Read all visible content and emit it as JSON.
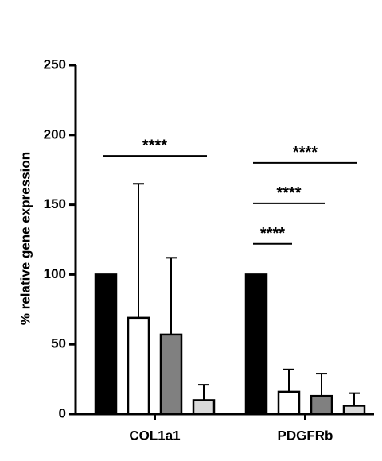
{
  "chart_data": {
    "type": "bar",
    "y_label": "% relative gene expression",
    "categories": [
      "COL1a1",
      "PDGFRb"
    ],
    "series": [
      {
        "color": "#000000",
        "values": [
          100,
          100
        ]
      },
      {
        "color": "#ffffff",
        "values": [
          69,
          16
        ],
        "errors": [
          96,
          16
        ]
      },
      {
        "color": "#808080",
        "values": [
          57,
          13
        ],
        "errors": [
          55,
          16
        ]
      },
      {
        "color": "#d9d9d9",
        "values": [
          10,
          6
        ],
        "errors": [
          11,
          9
        ]
      }
    ],
    "ylim": [
      0,
      250
    ],
    "yticks": [
      0,
      50,
      100,
      150,
      200,
      250
    ],
    "annotations": [
      {
        "text": "****",
        "y": 185,
        "category": 0,
        "from": 0,
        "to": 3
      },
      {
        "text": "****",
        "y": 180,
        "category": 1,
        "from": 0,
        "to": 3
      },
      {
        "text": "****",
        "y": 151,
        "category": 1,
        "from": 0,
        "to": 2
      },
      {
        "text": "****",
        "y": 122,
        "category": 1,
        "from": 0,
        "to": 1
      }
    ]
  }
}
